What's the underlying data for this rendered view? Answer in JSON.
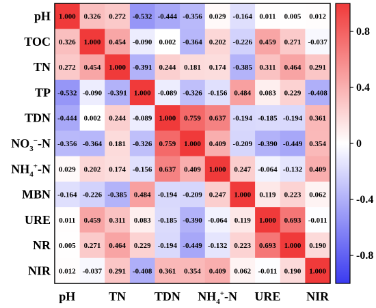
{
  "chart_data": {
    "type": "heatmap",
    "row_labels": [
      "pH",
      "TOC",
      "TN",
      "TP",
      "TDN",
      "NO3−-N",
      "NH4+-N",
      "MBN",
      "URE",
      "NR",
      "NIR"
    ],
    "row_labels_rich": [
      {
        "base": "pH"
      },
      {
        "base": "TOC"
      },
      {
        "base": "TN"
      },
      {
        "base": "TP"
      },
      {
        "base": "TDN"
      },
      {
        "base": "NO",
        "sub": "3",
        "sup": "−",
        "suffix": "-N"
      },
      {
        "base": "NH",
        "sub": "4",
        "sup": "+",
        "suffix": "-N"
      },
      {
        "base": "MBN"
      },
      {
        "base": "URE"
      },
      {
        "base": "NR"
      },
      {
        "base": "NIR"
      }
    ],
    "col_tick_labels": [
      {
        "col": 0,
        "base": "pH"
      },
      {
        "col": 2,
        "base": "TN"
      },
      {
        "col": 4,
        "base": "TDN"
      },
      {
        "col": 6,
        "base": "NH",
        "sub": "4",
        "sup": "+",
        "suffix": "-N"
      },
      {
        "col": 8,
        "base": "URE"
      },
      {
        "col": 10,
        "base": "NIR"
      }
    ],
    "values": [
      [
        "1.000",
        "0.326",
        "0.272",
        "-0.532",
        "-0.444",
        "-0.356",
        "0.029",
        "-0.164",
        "0.011",
        "0.005",
        "0.012"
      ],
      [
        "0.326",
        "1.000",
        "0.454",
        "-0.090",
        "0.002",
        "-0.364",
        "0.202",
        "-0.226",
        "0.459",
        "0.271",
        "-0.037"
      ],
      [
        "0.272",
        "0.454",
        "1.000",
        "-0.391",
        "0.244",
        "0.181",
        "0.174",
        "-0.385",
        "0.311",
        "0.464",
        "0.291"
      ],
      [
        "-0.532",
        "-0.090",
        "-0.391",
        "1.000",
        "-0.089",
        "-0.326",
        "-0.156",
        "0.484",
        "0.083",
        "0.229",
        "-0.408"
      ],
      [
        "-0.444",
        "0.002",
        "0.244",
        "-0.089",
        "1.000",
        "0.759",
        "0.637",
        "-0.194",
        "-0.185",
        "-0.194",
        "0.361"
      ],
      [
        "-0.356",
        "-0.364",
        "0.181",
        "-0.326",
        "0.759",
        "1.000",
        "0.409",
        "-0.209",
        "-0.390",
        "-0.449",
        "0.354"
      ],
      [
        "0.029",
        "0.202",
        "0.174",
        "-0.156",
        "0.637",
        "0.409",
        "1.000",
        "0.247",
        "-0.064",
        "-0.132",
        "0.409"
      ],
      [
        "-0.164",
        "-0.226",
        "-0.385",
        "0.484",
        "-0.194",
        "-0.209",
        "0.247",
        "1.000",
        "0.119",
        "0.223",
        "0.062"
      ],
      [
        "0.011",
        "0.459",
        "0.311",
        "0.083",
        "-0.185",
        "-0.390",
        "-0.064",
        "0.119",
        "1.000",
        "0.693",
        "-0.011"
      ],
      [
        "0.005",
        "0.271",
        "0.464",
        "0.229",
        "-0.194",
        "-0.449",
        "-0.132",
        "0.223",
        "0.693",
        "1.000",
        "0.190"
      ],
      [
        "0.012",
        "-0.037",
        "0.291",
        "-0.408",
        "0.361",
        "0.354",
        "0.409",
        "0.062",
        "-0.011",
        "0.190",
        "1.000"
      ]
    ],
    "colorbar": {
      "range": [
        -1,
        1
      ],
      "ticks": [
        0.8,
        0.4,
        0,
        -0.4,
        -0.8
      ],
      "tick_labels": [
        "0.8",
        "0.4",
        "0",
        "-0.4",
        "-0.8"
      ],
      "colors": {
        "negative": "#3a3af0",
        "zero": "#ffffff",
        "positive": "#f03a3a"
      }
    },
    "grid": false,
    "legend": "right"
  }
}
